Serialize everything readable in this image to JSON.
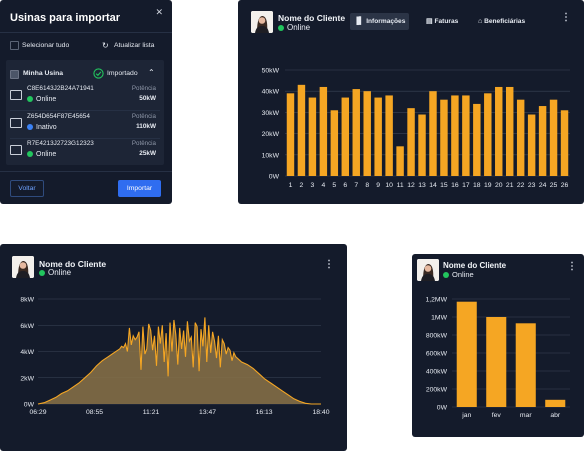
{
  "modal": {
    "title": "Usinas para importar",
    "close_icon": "close-icon",
    "select_all_label": "Selecionar tudo",
    "refresh_label": "Atualizar lista",
    "group": {
      "name": "Minha Usina",
      "status_label": "Importado",
      "plants": [
        {
          "id": "C8E6143J2B24A71941",
          "status": "Online",
          "power_label": "Potência",
          "power": "50kW"
        },
        {
          "id": "Z654D654F87E45654",
          "status": "Inativo",
          "power_label": "Potência",
          "power": "110kW"
        },
        {
          "id": "R7E4213J2723G12323",
          "status": "Online",
          "power_label": "Potência",
          "power": "25kW"
        }
      ]
    },
    "back_label": "Voltar",
    "import_label": "Importar"
  },
  "card1": {
    "client_name": "Nome do Cliente",
    "status": "Online",
    "tabs": [
      {
        "label": "Informações",
        "icon": "bar-chart-icon",
        "active": true
      },
      {
        "label": "Faturas",
        "icon": "invoice-icon",
        "active": false
      },
      {
        "label": "Beneficiárias",
        "icon": "home-icon",
        "active": false
      }
    ]
  },
  "card2": {
    "client_name": "Nome do Cliente",
    "status": "Online"
  },
  "card3": {
    "client_name": "Nome do Cliente",
    "status": "Online"
  },
  "colors": {
    "accent": "#f5a623",
    "background": "#141b2b",
    "online": "#22c55e",
    "inactive": "#3b82f6",
    "primary_button": "#2f6df0"
  },
  "chart_data": [
    {
      "type": "bar",
      "categories": [
        "1",
        "2",
        "3",
        "4",
        "5",
        "6",
        "7",
        "8",
        "9",
        "10",
        "11",
        "12",
        "13",
        "14",
        "15",
        "16",
        "17",
        "18",
        "19",
        "20",
        "21",
        "22",
        "23",
        "24",
        "25",
        "26"
      ],
      "values": [
        39,
        43,
        37,
        42,
        31,
        37,
        41,
        40,
        37,
        38,
        14,
        32,
        29,
        40,
        36,
        38,
        38,
        34,
        39,
        42,
        42,
        36,
        29,
        33,
        36,
        31
      ],
      "unit": "kW",
      "yticks": [
        "0W",
        "10kW",
        "20kW",
        "30kW",
        "40kW",
        "50kW"
      ],
      "ylim": [
        0,
        50
      ],
      "grid": true
    },
    {
      "type": "area",
      "x": [
        "06:29",
        "06:45",
        "07:00",
        "07:15",
        "07:30",
        "07:45",
        "08:00",
        "08:15",
        "08:30",
        "08:45",
        "09:00",
        "09:15",
        "09:30",
        "09:45",
        "10:00",
        "10:05",
        "10:10",
        "10:15",
        "10:20",
        "10:25",
        "10:30",
        "10:35",
        "10:40",
        "10:45",
        "10:50",
        "10:55",
        "11:00",
        "11:05",
        "11:10",
        "11:15",
        "11:20",
        "11:25",
        "11:30",
        "11:35",
        "11:40",
        "11:45",
        "11:50",
        "11:55",
        "12:00",
        "12:05",
        "12:10",
        "12:15",
        "12:20",
        "12:25",
        "12:30",
        "12:35",
        "12:40",
        "12:45",
        "12:50",
        "12:55",
        "13:00",
        "13:05",
        "13:10",
        "13:15",
        "13:20",
        "13:25",
        "13:30",
        "13:35",
        "13:40",
        "13:45",
        "13:50",
        "13:55",
        "14:00",
        "14:05",
        "14:10",
        "14:15",
        "14:20",
        "14:25",
        "14:30",
        "14:35",
        "14:40",
        "14:45",
        "14:50",
        "14:55",
        "15:00",
        "15:15",
        "15:30",
        "15:45",
        "16:00",
        "16:15",
        "16:30",
        "16:45",
        "17:00",
        "17:15",
        "17:30",
        "17:45",
        "18:00",
        "18:15",
        "18:40"
      ],
      "values": [
        0,
        0.1,
        0.3,
        0.5,
        0.8,
        1.0,
        1.3,
        1.6,
        2.0,
        2.4,
        2.9,
        3.3,
        3.6,
        3.9,
        4.2,
        4.4,
        4.3,
        4.6,
        4.0,
        5.8,
        4.5,
        5.2,
        4.9,
        5.1,
        5.5,
        2.6,
        5.9,
        3.8,
        4.2,
        6.1,
        5.6,
        4.1,
        5.2,
        2.9,
        5.9,
        4.6,
        6.0,
        3.2,
        5.4,
        2.1,
        6.2,
        4.0,
        6.4,
        5.3,
        3.0,
        5.8,
        4.2,
        5.6,
        3.6,
        6.3,
        4.8,
        5.1,
        2.8,
        6.2,
        5.9,
        2.5,
        5.7,
        4.4,
        6.6,
        3.2,
        6.0,
        3.9,
        5.5,
        4.8,
        3.5,
        5.2,
        2.8,
        4.9,
        4.6,
        3.8,
        4.3,
        4.1,
        3.3,
        3.9,
        3.6,
        3.2,
        3.0,
        2.7,
        2.3,
        1.9,
        1.6,
        1.3,
        1.0,
        0.7,
        0.4,
        0.2,
        0.05,
        0,
        0
      ],
      "unit": "kW",
      "xticks": [
        "06:29",
        "08:55",
        "11:21",
        "13:47",
        "16:13",
        "18:40"
      ],
      "yticks": [
        "0W",
        "2kW",
        "4kW",
        "6kW",
        "8kW"
      ],
      "ylim": [
        0,
        8
      ],
      "grid": true
    },
    {
      "type": "bar",
      "categories": [
        "jan",
        "fev",
        "mar",
        "abr"
      ],
      "values": [
        1.17,
        1.0,
        0.93,
        0.08
      ],
      "unit": "MW",
      "yticks": [
        "0W",
        "200kW",
        "400kW",
        "600kW",
        "800kW",
        "1MW",
        "1,2MW"
      ],
      "ylim": [
        0,
        1.2
      ],
      "grid": true
    }
  ]
}
